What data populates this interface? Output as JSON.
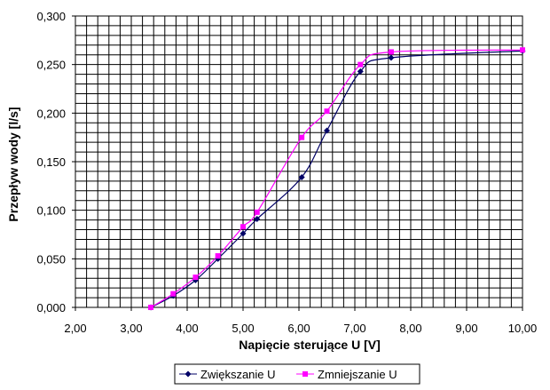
{
  "chart_data": {
    "type": "line",
    "xlabel": "Napięcie sterujące U [V]",
    "ylabel": "Przepływ wody [l/s]",
    "xlim": [
      2,
      10
    ],
    "ylim": [
      0,
      0.3
    ],
    "x_ticks": [
      "2,00",
      "3,00",
      "4,00",
      "5,00",
      "6,00",
      "7,00",
      "8,00",
      "9,00",
      "10,00"
    ],
    "y_ticks": [
      "0,000",
      "0,050",
      "0,100",
      "0,150",
      "0,200",
      "0,250",
      "0,300"
    ],
    "grid": true,
    "legend_position": "bottom",
    "series": [
      {
        "name": "Zwiększanie U",
        "color": "#000066",
        "marker": "diamond",
        "points": [
          {
            "x": 3.35,
            "y": 0.0
          },
          {
            "x": 3.75,
            "y": 0.012
          },
          {
            "x": 4.15,
            "y": 0.028
          },
          {
            "x": 4.55,
            "y": 0.05
          },
          {
            "x": 5.0,
            "y": 0.076
          },
          {
            "x": 5.25,
            "y": 0.091
          },
          {
            "x": 6.05,
            "y": 0.134
          },
          {
            "x": 6.5,
            "y": 0.182
          },
          {
            "x": 7.1,
            "y": 0.243
          },
          {
            "x": 7.65,
            "y": 0.257
          },
          {
            "x": 10.0,
            "y": 0.264
          }
        ]
      },
      {
        "name": "Zmniejszanie U",
        "color": "#ff00ff",
        "marker": "square",
        "points": [
          {
            "x": 3.35,
            "y": 0.0
          },
          {
            "x": 3.75,
            "y": 0.014
          },
          {
            "x": 4.15,
            "y": 0.031
          },
          {
            "x": 4.55,
            "y": 0.053
          },
          {
            "x": 5.0,
            "y": 0.083
          },
          {
            "x": 5.25,
            "y": 0.098
          },
          {
            "x": 6.05,
            "y": 0.175
          },
          {
            "x": 6.5,
            "y": 0.202
          },
          {
            "x": 7.1,
            "y": 0.25
          },
          {
            "x": 7.65,
            "y": 0.263
          },
          {
            "x": 10.0,
            "y": 0.265
          }
        ]
      }
    ]
  }
}
